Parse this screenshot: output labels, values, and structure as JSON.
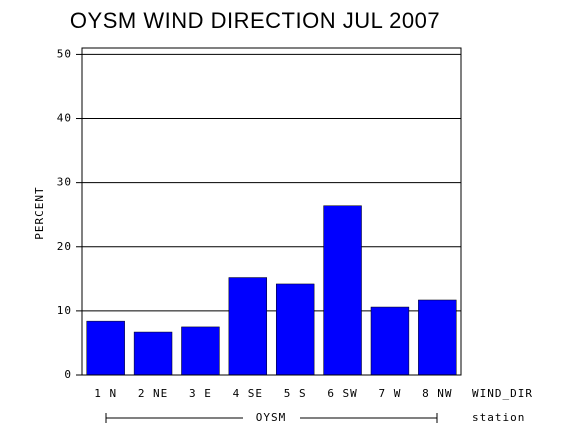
{
  "chart_data": {
    "type": "bar",
    "title": "OYSM WIND DIRECTION JUL 2007",
    "categories": [
      "1 N",
      "2 NE",
      "3 E",
      "4 SE",
      "5 S",
      "6 SW",
      "7 W",
      "8 NW"
    ],
    "values": [
      8.4,
      6.7,
      7.5,
      15.2,
      14.2,
      26.4,
      10.6,
      11.7
    ],
    "color": "#0000ff",
    "x_label": "WIND_DIR",
    "group_label": "OYSM",
    "group_axis_label": "station",
    "y_label": "PERCENT",
    "ylim": [
      0,
      51
    ],
    "yticks": [
      0,
      10,
      20,
      30,
      40,
      50
    ],
    "grid": true
  }
}
